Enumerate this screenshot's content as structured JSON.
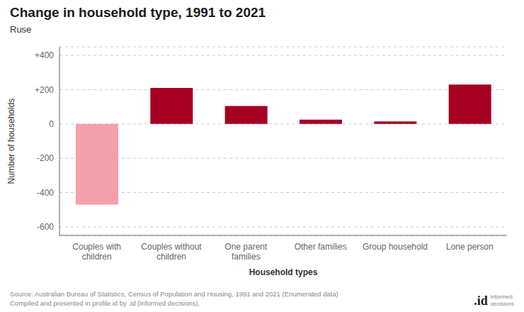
{
  "chart_data": {
    "type": "bar",
    "title": "Change in household type, 1991 to 2021",
    "subtitle": "Ruse",
    "xlabel": "Household types",
    "ylabel": "Number of households",
    "categories": [
      "Couples with\nchildren",
      "Couples without\nchildren",
      "One parent\nfamilies",
      "Other families",
      "Group household",
      "Lone person"
    ],
    "values": [
      -470,
      210,
      105,
      25,
      15,
      230
    ],
    "colors": [
      "#f4a0a8",
      "#a50021",
      "#a50021",
      "#a50021",
      "#a50021",
      "#a50021"
    ],
    "ylim": [
      -650,
      450
    ],
    "yticks": [
      -600,
      -400,
      -200,
      0,
      {
        "value": 200,
        "label": "+200"
      },
      {
        "value": 400,
        "label": "+400"
      }
    ],
    "grid": true,
    "annotations": [
      "Source: Australian Bureau of Statistics, Census of Population and Housing, 1991 and 2021 (Enumerated data)\nCompiled and presented in profile.id by .id (informed decisions).",
      ".id",
      "informed\ndecisions"
    ]
  }
}
